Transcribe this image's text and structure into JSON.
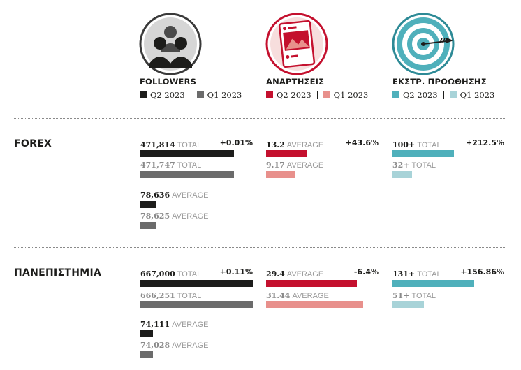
{
  "colors": {
    "followers_q2": "#1d1d1b",
    "followers_q1": "#6b6b6b",
    "posts_q2": "#c4102e",
    "posts_q1": "#e8908c",
    "promo_q2": "#4fb0bb",
    "promo_q1": "#a8d3d8",
    "muted": "#9a9a9a"
  },
  "icons": [
    "users-icon",
    "post-image-icon",
    "target-icon"
  ],
  "columns": [
    {
      "title": "FOLLOWERS",
      "legend_q2": "Q2 2023",
      "legend_q1": "Q1 2023"
    },
    {
      "title": "ΑΝΑΡΤΗΣΕΙΣ",
      "legend_q2": "Q2 2023",
      "legend_q1": "Q1 2023"
    },
    {
      "title": "ΕΚΣΤΡ. ΠΡΟΩΘΗΣΗΣ",
      "legend_q2": "Q2 2023",
      "legend_q1": "Q1 2023"
    }
  ],
  "chart_data": {
    "type": "bar",
    "series_names": [
      "Q2 2023",
      "Q1 2023"
    ],
    "rows": [
      {
        "label": "FOREX",
        "followers": {
          "change": "+0.01%",
          "total_q2": {
            "value": 471814,
            "text": "471,814",
            "unit": "TOTAL"
          },
          "total_q1": {
            "value": 471747,
            "text": "471,747",
            "unit": "TOTAL"
          },
          "avg_q2": {
            "value": 78636,
            "text": "78,636",
            "unit": "AVERAGE"
          },
          "avg_q1": {
            "value": 78625,
            "text": "78,625",
            "unit": "AVERAGE"
          }
        },
        "posts": {
          "change": "+43.6%",
          "q2": {
            "value": 13.2,
            "text": "13.2",
            "unit": "AVERAGE"
          },
          "q1": {
            "value": 9.17,
            "text": "9.17",
            "unit": "AVERAGE"
          }
        },
        "promo": {
          "change": "+212.5%",
          "q2": {
            "value": 100,
            "text": "100+",
            "unit": "TOTAL"
          },
          "q1": {
            "value": 32,
            "text": "32+",
            "unit": "TOTAL"
          }
        }
      },
      {
        "label": "ΠΑΝΕΠΙΣΤΗΜΙΑ",
        "followers": {
          "change": "+0.11%",
          "total_q2": {
            "value": 667000,
            "text": "667,000",
            "unit": "TOTAL"
          },
          "total_q1": {
            "value": 666251,
            "text": "666,251",
            "unit": "TOTAL"
          },
          "avg_q2": {
            "value": 74111,
            "text": "74,111",
            "unit": "AVERAGE"
          },
          "avg_q1": {
            "value": 74028,
            "text": "74,028",
            "unit": "AVERAGE"
          }
        },
        "posts": {
          "change": "-6.4%",
          "q2": {
            "value": 29.4,
            "text": "29.4",
            "unit": "AVERAGE"
          },
          "q1": {
            "value": 31.44,
            "text": "31.44",
            "unit": "AVERAGE"
          }
        },
        "promo": {
          "change": "+156.86%",
          "q2": {
            "value": 131,
            "text": "131+",
            "unit": "TOTAL"
          },
          "q1": {
            "value": 51,
            "text": "51+",
            "unit": "TOTAL"
          }
        }
      }
    ]
  }
}
